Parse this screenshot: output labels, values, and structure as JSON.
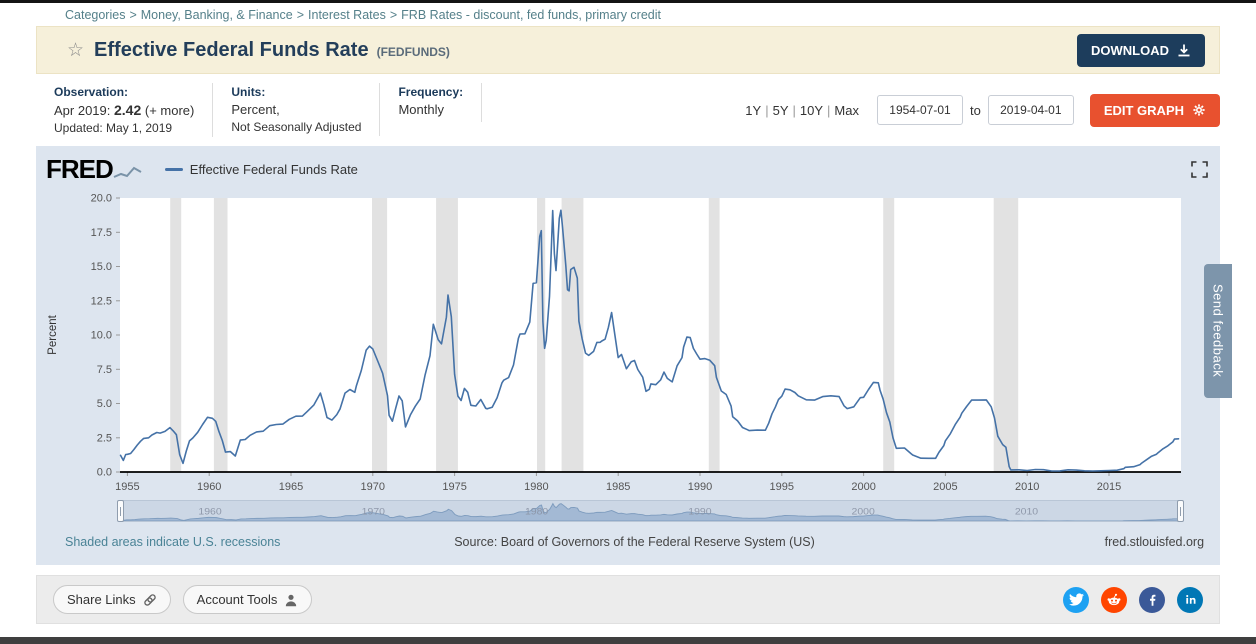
{
  "breadcrumb": {
    "separator": ">",
    "items": [
      "Categories",
      "Money, Banking, & Finance",
      "Interest Rates",
      "FRB Rates - discount, fed funds, primary credit"
    ]
  },
  "header": {
    "title": "Effective Federal Funds Rate",
    "series_id": "(FEDFUNDS)",
    "download_label": "DOWNLOAD"
  },
  "meta": {
    "observation_label": "Observation:",
    "observation_date": "Apr 2019:",
    "observation_value": "2.42",
    "observation_more": "(+ more)",
    "updated": "Updated: May 1, 2019",
    "units_label": "Units:",
    "units_value": "Percent,",
    "units_adjustment": "Not Seasonally Adjusted",
    "frequency_label": "Frequency:",
    "frequency_value": "Monthly"
  },
  "range_controls": {
    "presets": [
      "1Y",
      "5Y",
      "10Y",
      "Max"
    ],
    "start_date": "1954-07-01",
    "to_label": "to",
    "end_date": "2019-04-01",
    "edit_graph_label": "EDIT GRAPH"
  },
  "chart_header": {
    "logo_text": "FRED",
    "legend_label": "Effective Federal Funds Rate"
  },
  "footnotes": {
    "recession_note": "Shaded areas indicate U.S. recessions",
    "source": "Source: Board of Governors of the Federal Reserve System (US)",
    "site": "fred.stlouisfed.org"
  },
  "footer": {
    "share_links_label": "Share Links",
    "account_tools_label": "Account Tools",
    "social": [
      {
        "name": "twitter",
        "color": "#1da1f2"
      },
      {
        "name": "reddit",
        "color": "#ff4500"
      },
      {
        "name": "facebook",
        "color": "#3b5998"
      },
      {
        "name": "linkedin",
        "color": "#0077b5"
      }
    ]
  },
  "feedback": {
    "label": "Send feedback"
  },
  "colors": {
    "line": "#4572a7",
    "recession": "#e2e2e2",
    "navy": "#1d3d5c",
    "orange": "#e8512f",
    "slider_area": "#a3b9d4",
    "slider_stroke": "#7e9cbe"
  },
  "chart_data": {
    "type": "line",
    "title": "Effective Federal Funds Rate",
    "ylabel": "Percent",
    "ylim": [
      0,
      20
    ],
    "xlim": [
      1954.55,
      2019.4
    ],
    "yticks": [
      0.0,
      2.5,
      5.0,
      7.5,
      10.0,
      12.5,
      15.0,
      17.5,
      20.0
    ],
    "xticks": [
      1955,
      1960,
      1965,
      1970,
      1975,
      1980,
      1985,
      1990,
      1995,
      2000,
      2005,
      2010,
      2015
    ],
    "slider_year_labels": [
      1960,
      1970,
      1980,
      1990,
      2000,
      2010
    ],
    "line_color": "#4572a7",
    "recession_color": "#e2e2e2",
    "grid": false,
    "legend_position": "top-left",
    "recessions": [
      [
        1957.62,
        1958.29
      ],
      [
        1960.29,
        1961.12
      ],
      [
        1969.95,
        1970.87
      ],
      [
        1973.87,
        1975.2
      ],
      [
        1980.04,
        1980.54
      ],
      [
        1981.54,
        1982.87
      ],
      [
        1990.54,
        1991.2
      ],
      [
        2001.2,
        2001.87
      ],
      [
        2007.95,
        2009.45
      ]
    ],
    "series": [
      {
        "name": "Effective Federal Funds Rate",
        "points": [
          [
            1954.58,
            1.22
          ],
          [
            1954.75,
            0.85
          ],
          [
            1954.9,
            1.28
          ],
          [
            1955.0,
            1.29
          ],
          [
            1955.2,
            1.35
          ],
          [
            1955.4,
            1.64
          ],
          [
            1955.6,
            1.96
          ],
          [
            1955.8,
            2.24
          ],
          [
            1956.0,
            2.45
          ],
          [
            1956.3,
            2.5
          ],
          [
            1956.5,
            2.7
          ],
          [
            1956.8,
            2.88
          ],
          [
            1957.0,
            2.84
          ],
          [
            1957.3,
            2.96
          ],
          [
            1957.6,
            3.24
          ],
          [
            1957.8,
            3.0
          ],
          [
            1958.0,
            2.72
          ],
          [
            1958.2,
            1.26
          ],
          [
            1958.4,
            0.63
          ],
          [
            1958.6,
            1.53
          ],
          [
            1958.8,
            2.27
          ],
          [
            1959.0,
            2.48
          ],
          [
            1959.3,
            2.9
          ],
          [
            1959.6,
            3.47
          ],
          [
            1959.9,
            3.99
          ],
          [
            1960.2,
            3.92
          ],
          [
            1960.4,
            3.7
          ],
          [
            1960.6,
            2.94
          ],
          [
            1960.8,
            2.3
          ],
          [
            1961.0,
            1.45
          ],
          [
            1961.3,
            1.49
          ],
          [
            1961.6,
            1.17
          ],
          [
            1961.9,
            2.33
          ],
          [
            1962.2,
            2.37
          ],
          [
            1962.5,
            2.68
          ],
          [
            1962.9,
            2.93
          ],
          [
            1963.3,
            2.98
          ],
          [
            1963.7,
            3.38
          ],
          [
            1964.1,
            3.47
          ],
          [
            1964.5,
            3.5
          ],
          [
            1964.9,
            3.85
          ],
          [
            1965.3,
            4.07
          ],
          [
            1965.7,
            4.08
          ],
          [
            1966.0,
            4.42
          ],
          [
            1966.4,
            4.9
          ],
          [
            1966.8,
            5.76
          ],
          [
            1967.0,
            4.94
          ],
          [
            1967.2,
            3.98
          ],
          [
            1967.5,
            3.79
          ],
          [
            1967.8,
            4.19
          ],
          [
            1968.0,
            4.61
          ],
          [
            1968.3,
            5.76
          ],
          [
            1968.6,
            6.02
          ],
          [
            1968.9,
            5.82
          ],
          [
            1969.0,
            6.3
          ],
          [
            1969.3,
            7.41
          ],
          [
            1969.6,
            8.9
          ],
          [
            1969.8,
            9.19
          ],
          [
            1970.0,
            8.98
          ],
          [
            1970.3,
            8.1
          ],
          [
            1970.6,
            7.21
          ],
          [
            1970.9,
            5.57
          ],
          [
            1971.0,
            4.14
          ],
          [
            1971.2,
            3.71
          ],
          [
            1971.4,
            4.66
          ],
          [
            1971.6,
            5.55
          ],
          [
            1971.8,
            5.2
          ],
          [
            1972.0,
            3.29
          ],
          [
            1972.3,
            4.17
          ],
          [
            1972.6,
            4.8
          ],
          [
            1972.9,
            5.33
          ],
          [
            1973.0,
            5.94
          ],
          [
            1973.2,
            7.09
          ],
          [
            1973.5,
            8.49
          ],
          [
            1973.7,
            10.78
          ],
          [
            1973.9,
            10.03
          ],
          [
            1974.0,
            9.65
          ],
          [
            1974.2,
            9.35
          ],
          [
            1974.5,
            11.31
          ],
          [
            1974.6,
            12.92
          ],
          [
            1974.8,
            11.34
          ],
          [
            1975.0,
            7.13
          ],
          [
            1975.2,
            5.54
          ],
          [
            1975.4,
            5.22
          ],
          [
            1975.6,
            6.1
          ],
          [
            1975.8,
            5.82
          ],
          [
            1976.0,
            4.87
          ],
          [
            1976.3,
            4.82
          ],
          [
            1976.6,
            5.29
          ],
          [
            1976.9,
            4.65
          ],
          [
            1977.0,
            4.61
          ],
          [
            1977.3,
            4.73
          ],
          [
            1977.6,
            5.42
          ],
          [
            1977.9,
            6.51
          ],
          [
            1978.0,
            6.7
          ],
          [
            1978.3,
            6.89
          ],
          [
            1978.6,
            7.81
          ],
          [
            1978.9,
            9.76
          ],
          [
            1979.0,
            10.07
          ],
          [
            1979.3,
            10.09
          ],
          [
            1979.6,
            10.94
          ],
          [
            1979.8,
            13.77
          ],
          [
            1980.0,
            13.82
          ],
          [
            1980.2,
            17.19
          ],
          [
            1980.3,
            17.61
          ],
          [
            1980.4,
            10.98
          ],
          [
            1980.5,
            9.03
          ],
          [
            1980.6,
            9.61
          ],
          [
            1980.8,
            12.81
          ],
          [
            1980.9,
            15.85
          ],
          [
            1981.0,
            19.08
          ],
          [
            1981.1,
            15.93
          ],
          [
            1981.2,
            14.7
          ],
          [
            1981.4,
            18.52
          ],
          [
            1981.5,
            19.1
          ],
          [
            1981.6,
            17.82
          ],
          [
            1981.8,
            15.08
          ],
          [
            1981.9,
            13.31
          ],
          [
            1982.0,
            13.22
          ],
          [
            1982.1,
            14.78
          ],
          [
            1982.3,
            14.94
          ],
          [
            1982.5,
            14.15
          ],
          [
            1982.6,
            11.01
          ],
          [
            1982.8,
            9.71
          ],
          [
            1983.0,
            8.68
          ],
          [
            1983.2,
            8.51
          ],
          [
            1983.5,
            8.8
          ],
          [
            1983.7,
            9.46
          ],
          [
            1983.9,
            9.47
          ],
          [
            1984.0,
            9.56
          ],
          [
            1984.2,
            9.69
          ],
          [
            1984.4,
            10.56
          ],
          [
            1984.6,
            11.64
          ],
          [
            1984.8,
            9.99
          ],
          [
            1985.0,
            8.35
          ],
          [
            1985.2,
            8.58
          ],
          [
            1985.5,
            7.53
          ],
          [
            1985.8,
            8.05
          ],
          [
            1986.0,
            8.14
          ],
          [
            1986.2,
            7.48
          ],
          [
            1986.5,
            6.92
          ],
          [
            1986.7,
            5.89
          ],
          [
            1986.9,
            6.04
          ],
          [
            1987.0,
            6.43
          ],
          [
            1987.3,
            6.37
          ],
          [
            1987.6,
            6.73
          ],
          [
            1987.8,
            7.29
          ],
          [
            1988.0,
            6.83
          ],
          [
            1988.3,
            6.58
          ],
          [
            1988.6,
            7.75
          ],
          [
            1988.9,
            8.35
          ],
          [
            1989.0,
            9.12
          ],
          [
            1989.2,
            9.85
          ],
          [
            1989.4,
            9.81
          ],
          [
            1989.6,
            9.02
          ],
          [
            1989.8,
            8.61
          ],
          [
            1990.0,
            8.23
          ],
          [
            1990.3,
            8.28
          ],
          [
            1990.6,
            8.15
          ],
          [
            1990.9,
            7.76
          ],
          [
            1991.0,
            6.91
          ],
          [
            1991.3,
            5.91
          ],
          [
            1991.6,
            5.66
          ],
          [
            1991.9,
            4.81
          ],
          [
            1992.0,
            4.03
          ],
          [
            1992.3,
            3.73
          ],
          [
            1992.6,
            3.25
          ],
          [
            1992.9,
            3.09
          ],
          [
            1993.0,
            3.02
          ],
          [
            1993.5,
            3.06
          ],
          [
            1994.0,
            3.05
          ],
          [
            1994.2,
            3.56
          ],
          [
            1994.4,
            4.25
          ],
          [
            1994.6,
            4.73
          ],
          [
            1994.8,
            5.29
          ],
          [
            1995.0,
            5.53
          ],
          [
            1995.2,
            6.05
          ],
          [
            1995.5,
            6.0
          ],
          [
            1995.8,
            5.8
          ],
          [
            1996.0,
            5.56
          ],
          [
            1996.5,
            5.27
          ],
          [
            1997.0,
            5.25
          ],
          [
            1997.5,
            5.5
          ],
          [
            1998.0,
            5.56
          ],
          [
            1998.5,
            5.5
          ],
          [
            1998.8,
            4.83
          ],
          [
            1999.0,
            4.63
          ],
          [
            1999.4,
            4.76
          ],
          [
            1999.8,
            5.42
          ],
          [
            2000.0,
            5.45
          ],
          [
            2000.3,
            6.02
          ],
          [
            2000.6,
            6.54
          ],
          [
            2000.9,
            6.51
          ],
          [
            2001.0,
            5.98
          ],
          [
            2001.2,
            5.31
          ],
          [
            2001.4,
            4.33
          ],
          [
            2001.6,
            3.65
          ],
          [
            2001.8,
            2.49
          ],
          [
            2002.0,
            1.73
          ],
          [
            2002.5,
            1.75
          ],
          [
            2002.9,
            1.34
          ],
          [
            2003.0,
            1.24
          ],
          [
            2003.5,
            1.01
          ],
          [
            2004.0,
            1.0
          ],
          [
            2004.4,
            1.0
          ],
          [
            2004.6,
            1.43
          ],
          [
            2004.9,
            1.93
          ],
          [
            2005.0,
            2.28
          ],
          [
            2005.3,
            2.79
          ],
          [
            2005.6,
            3.46
          ],
          [
            2005.9,
            4.0
          ],
          [
            2006.0,
            4.29
          ],
          [
            2006.3,
            4.79
          ],
          [
            2006.6,
            5.25
          ],
          [
            2007.0,
            5.25
          ],
          [
            2007.5,
            5.26
          ],
          [
            2007.8,
            4.76
          ],
          [
            2008.0,
            3.94
          ],
          [
            2008.2,
            2.61
          ],
          [
            2008.5,
            2.0
          ],
          [
            2008.7,
            1.81
          ],
          [
            2008.9,
            0.39
          ],
          [
            2009.0,
            0.15
          ],
          [
            2009.5,
            0.16
          ],
          [
            2010.0,
            0.11
          ],
          [
            2010.5,
            0.18
          ],
          [
            2011.0,
            0.17
          ],
          [
            2011.5,
            0.07
          ],
          [
            2012.0,
            0.08
          ],
          [
            2012.5,
            0.16
          ],
          [
            2013.0,
            0.14
          ],
          [
            2013.5,
            0.09
          ],
          [
            2014.0,
            0.07
          ],
          [
            2014.5,
            0.09
          ],
          [
            2015.0,
            0.11
          ],
          [
            2015.5,
            0.13
          ],
          [
            2015.9,
            0.24
          ],
          [
            2016.0,
            0.34
          ],
          [
            2016.5,
            0.39
          ],
          [
            2016.9,
            0.54
          ],
          [
            2017.0,
            0.65
          ],
          [
            2017.3,
            0.9
          ],
          [
            2017.6,
            1.15
          ],
          [
            2017.9,
            1.3
          ],
          [
            2018.0,
            1.41
          ],
          [
            2018.3,
            1.69
          ],
          [
            2018.6,
            1.91
          ],
          [
            2018.9,
            2.2
          ],
          [
            2019.0,
            2.4
          ],
          [
            2019.25,
            2.42
          ]
        ]
      }
    ]
  }
}
